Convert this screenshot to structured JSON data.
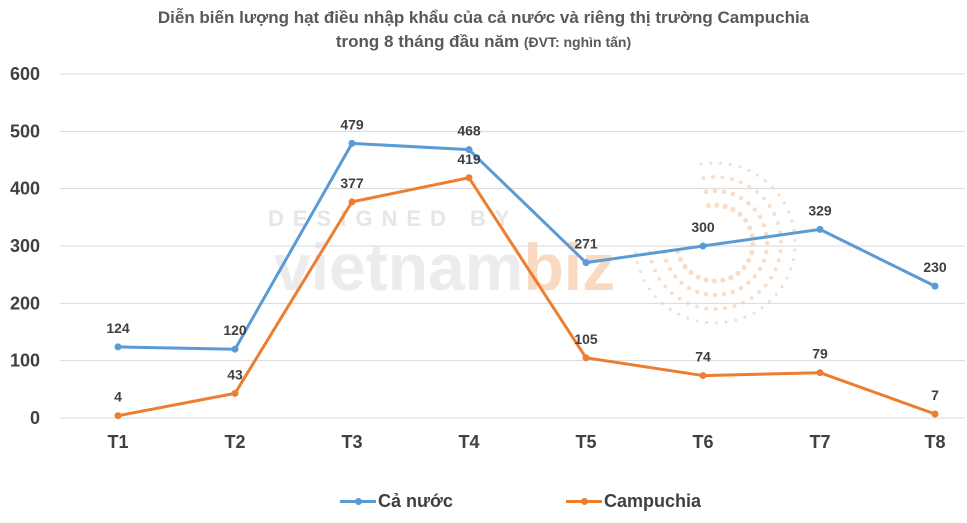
{
  "chart_data": {
    "type": "line",
    "title": "Diễn biến lượng hạt điều nhập khẩu của cả nước và riêng thị trường Campuchia",
    "subtitle": "trong 8 tháng đầu năm",
    "unit_note": "(ĐVT: nghìn tấn)",
    "categories": [
      "T1",
      "T2",
      "T3",
      "T4",
      "T5",
      "T6",
      "T7",
      "T8"
    ],
    "ylim": [
      0,
      600
    ],
    "yticks": [
      0,
      100,
      200,
      300,
      400,
      500,
      600
    ],
    "grid": true,
    "legend_position": "bottom",
    "series": [
      {
        "name": "Cả nước",
        "color": "#5b9bd5",
        "values": [
          124,
          120,
          479,
          468,
          271,
          300,
          329,
          230
        ]
      },
      {
        "name": "Campuchia",
        "color": "#ed7d31",
        "values": [
          4,
          43,
          377,
          419,
          105,
          74,
          79,
          7
        ]
      }
    ]
  },
  "watermark": {
    "top_text": "DESIGNED BY",
    "brand_main": "vietnam",
    "brand_accent": "biz"
  }
}
